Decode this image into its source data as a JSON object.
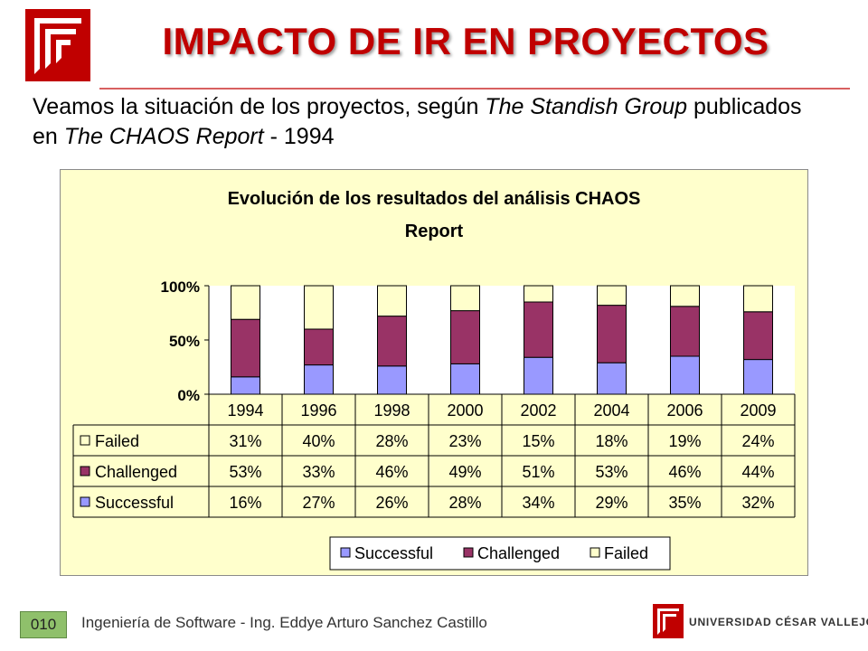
{
  "slide": {
    "title": "IMPACTO DE IR EN PROYECTOS",
    "subtitle_part1": "Veamos la situación de los proyectos, según ",
    "subtitle_italic1": "The Standish Group",
    "subtitle_part2": " publicados en ",
    "subtitle_italic2": "The CHAOS Report",
    "subtitle_part3": "  - 1994",
    "slide_number": "010",
    "footer_text": "Ingeniería de Software - Ing. Eddye Arturo Sanchez Castillo",
    "university_name": "UNIVERSIDAD CÉSAR VALLEJO"
  },
  "colors": {
    "brand_red": "#c00000",
    "plot_bg": "#ffffcc",
    "successful": "#9999ff",
    "challenged": "#993366",
    "failed": "#ffffcc"
  },
  "chart_data": {
    "type": "bar",
    "stacked": true,
    "title_line1": "Evolución de los resultados del análisis CHAOS",
    "title_line2": "Report",
    "categories": [
      "1994",
      "1996",
      "1998",
      "2000",
      "2002",
      "2004",
      "2006",
      "2009"
    ],
    "yticks": [
      "100%",
      "50%",
      "0%"
    ],
    "ylim": [
      0,
      100
    ],
    "grid": false,
    "legend_position": "bottom",
    "series": [
      {
        "name": "Successful",
        "values": [
          16,
          27,
          26,
          28,
          34,
          29,
          35,
          32
        ],
        "labels": [
          "16%",
          "27%",
          "26%",
          "28%",
          "34%",
          "29%",
          "35%",
          "32%"
        ]
      },
      {
        "name": "Challenged",
        "values": [
          53,
          33,
          46,
          49,
          51,
          53,
          46,
          44
        ],
        "labels": [
          "53%",
          "33%",
          "46%",
          "49%",
          "51%",
          "53%",
          "46%",
          "44%"
        ]
      },
      {
        "name": "Failed",
        "values": [
          31,
          40,
          28,
          23,
          15,
          18,
          19,
          24
        ],
        "labels": [
          "31%",
          "40%",
          "28%",
          "23%",
          "15%",
          "18%",
          "19%",
          "24%"
        ]
      }
    ],
    "table_row_order": [
      "Failed",
      "Challenged",
      "Successful"
    ]
  }
}
